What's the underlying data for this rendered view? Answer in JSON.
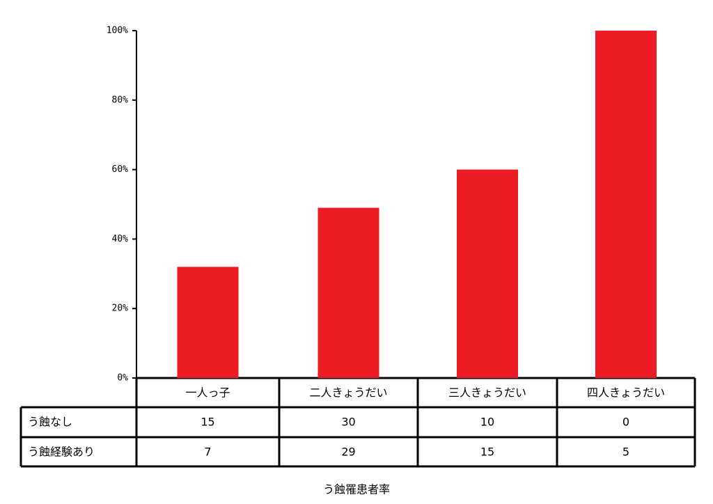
{
  "chart_data": {
    "type": "bar",
    "title": "う蝕罹患者率",
    "categories": [
      "一人っ子",
      "二人きょうだい",
      "三人きょうだい",
      "四人きょうだい"
    ],
    "values": [
      32,
      49,
      60,
      100
    ],
    "color": "#ed1c24",
    "ylim": [
      0,
      100
    ],
    "yticks": [
      {
        "value": 0,
        "label": "0%"
      },
      {
        "value": 20,
        "label": "20%"
      },
      {
        "value": 40,
        "label": "40%"
      },
      {
        "value": 60,
        "label": "60%"
      },
      {
        "value": 80,
        "label": "80%"
      },
      {
        "value": 100,
        "label": "100%"
      }
    ],
    "table": {
      "rows": [
        {
          "label": "う蝕なし",
          "values": [
            15,
            30,
            10,
            0
          ]
        },
        {
          "label": "う蝕経験あり",
          "values": [
            7,
            29,
            15,
            5
          ]
        }
      ]
    }
  }
}
